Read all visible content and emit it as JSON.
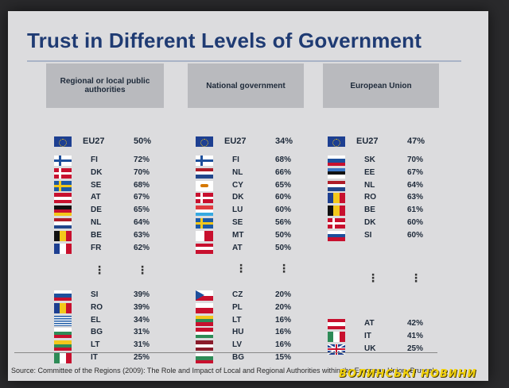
{
  "title": "Trust in Different Levels of Government",
  "source": "Source: Committee of the Regions (2009): The Role and Impact of Local and Regional Authorities within the European Union, Brussels",
  "watermark": "ВОЛИНСЬКІ НОВИНИ",
  "dots": "⋮",
  "columns": [
    {
      "header": "Regional or local public authorities",
      "eu": {
        "code": "EU27",
        "pct": "50%"
      },
      "top": [
        {
          "code": "FI",
          "pct": "72%"
        },
        {
          "code": "DK",
          "pct": "70%"
        },
        {
          "code": "SE",
          "pct": "68%"
        },
        {
          "code": "AT",
          "pct": "67%"
        },
        {
          "code": "DE",
          "pct": "65%"
        },
        {
          "code": "NL",
          "pct": "64%"
        },
        {
          "code": "BE",
          "pct": "63%"
        },
        {
          "code": "FR",
          "pct": "62%"
        }
      ],
      "bottom": [
        {
          "code": "SI",
          "pct": "39%"
        },
        {
          "code": "RO",
          "pct": "39%"
        },
        {
          "code": "EL",
          "pct": "34%"
        },
        {
          "code": "BG",
          "pct": "31%"
        },
        {
          "code": "LT",
          "pct": "31%"
        },
        {
          "code": "IT",
          "pct": "25%"
        }
      ]
    },
    {
      "header": "National government",
      "eu": {
        "code": "EU27",
        "pct": "34%"
      },
      "top": [
        {
          "code": "FI",
          "pct": "68%"
        },
        {
          "code": "NL",
          "pct": "66%"
        },
        {
          "code": "CY",
          "pct": "65%"
        },
        {
          "code": "DK",
          "pct": "60%"
        },
        {
          "code": "LU",
          "pct": "60%"
        },
        {
          "code": "SE",
          "pct": "56%"
        },
        {
          "code": "MT",
          "pct": "50%"
        },
        {
          "code": "AT",
          "pct": "50%"
        }
      ],
      "bottom": [
        {
          "code": "CZ",
          "pct": "20%"
        },
        {
          "code": "PL",
          "pct": "20%"
        },
        {
          "code": "LT",
          "pct": "16%"
        },
        {
          "code": "HU",
          "pct": "16%"
        },
        {
          "code": "LV",
          "pct": "16%"
        },
        {
          "code": "BG",
          "pct": "15%"
        }
      ]
    },
    {
      "header": "European Union",
      "eu": {
        "code": "EU27",
        "pct": "47%"
      },
      "top": [
        {
          "code": "SK",
          "pct": "70%"
        },
        {
          "code": "EE",
          "pct": "67%"
        },
        {
          "code": "NL",
          "pct": "64%"
        },
        {
          "code": "RO",
          "pct": "63%"
        },
        {
          "code": "BE",
          "pct": "61%"
        },
        {
          "code": "DK",
          "pct": "60%"
        },
        {
          "code": "SI",
          "pct": "60%"
        }
      ],
      "bottom": [
        {
          "code": "AT",
          "pct": "42%"
        },
        {
          "code": "IT",
          "pct": "41%"
        },
        {
          "code": "UK",
          "pct": "25%"
        }
      ]
    }
  ]
}
